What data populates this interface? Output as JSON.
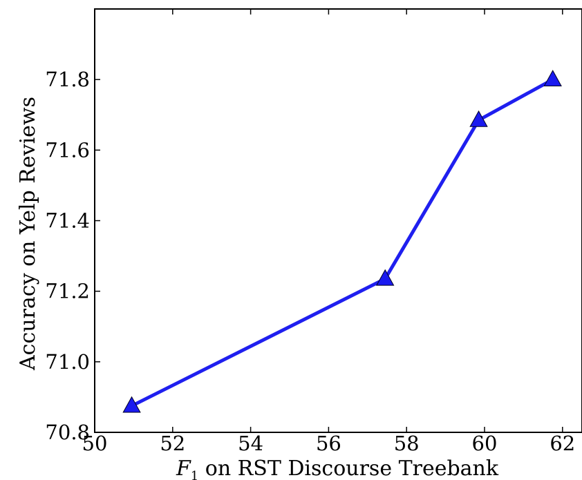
{
  "chart_data": {
    "type": "line",
    "x": [
      50.95,
      57.45,
      59.85,
      61.75
    ],
    "series": [
      {
        "values": [
          70.875,
          71.235,
          71.685,
          71.8
        ]
      }
    ],
    "xlabel": {
      "italic": "F",
      "subscript": "1",
      "rest": " on RST Discourse Treebank"
    },
    "ylabel": "Accuracy on Yelp Reviews",
    "xlim": [
      50,
      62.5
    ],
    "ylim": [
      70.8,
      72.0
    ],
    "xticks": [
      "50",
      "52",
      "54",
      "56",
      "58",
      "60",
      "62"
    ],
    "yticks": [
      "70.8",
      "71.0",
      "71.2",
      "71.4",
      "71.6",
      "71.8"
    ],
    "grid": false,
    "marker": "triangle-up",
    "line_color": "#1f1fef",
    "marker_color": "#1a1aef"
  }
}
